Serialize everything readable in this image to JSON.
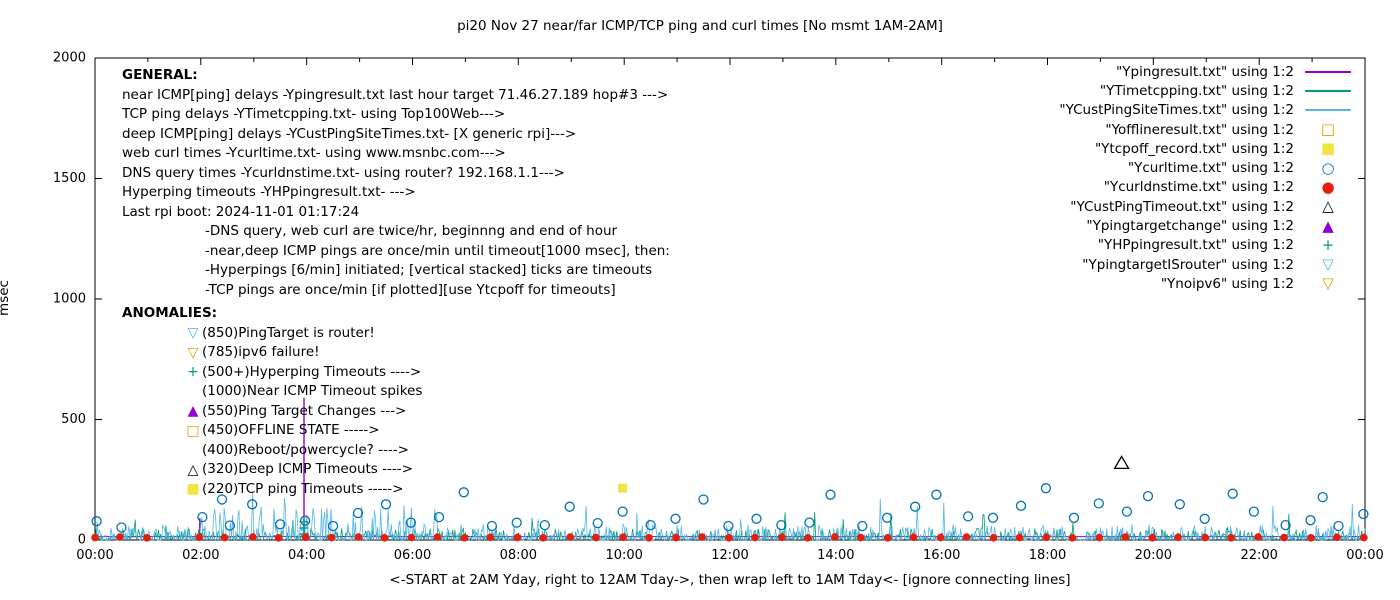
{
  "title": "pi20 Nov 27  near/far ICMP/TCP ping and curl times [No msmt 1AM-2AM]",
  "palette": {
    "purple": "#9400d3",
    "green": "#009e73",
    "lightblue": "#56b4e9",
    "orange": "#e69f00",
    "yellow": "#f0e442",
    "blue": "#0072b2",
    "red": "#e51e10",
    "black": "#000000"
  },
  "general": {
    "heading": "GENERAL:",
    "lines": [
      "near ICMP[ping] delays -Ypingresult.txt last hour target 71.46.27.189 hop#3 --->",
      "TCP ping delays -YTimetcpping.txt- using Top100Web--->",
      "deep ICMP[ping] delays -YCustPingSiteTimes.txt- [X generic rpi]--->",
      "web curl times -Ycurltime.txt- using www.msnbc.com--->",
      "DNS query times -Ycurldnstime.txt- using router? 192.168.1.1--->",
      "Hyperping timeouts -YHPpingresult.txt- --->",
      "Last rpi boot: 2024-11-01 01:17:24"
    ],
    "notes": [
      "-DNS query, web curl are twice/hr, beginnng and end of hour",
      "-near,deep ICMP pings are once/min until timeout[1000 msec], then:",
      "-Hyperpings [6/min] initiated; [vertical stacked] ticks are timeouts",
      "-TCP pings are once/min [if plotted][use Ytcpoff for timeouts]"
    ]
  },
  "anomalies": {
    "heading": "ANOMALIES:",
    "items": [
      {
        "glyph": "▽",
        "color": "#56b4e9",
        "text": "(850)PingTarget is router!"
      },
      {
        "glyph": "▽",
        "color": "#e69f00",
        "text": "(785)ipv6 failure!"
      },
      {
        "glyph": "+",
        "color": "#009e73",
        "text": "(500+)Hyperping Timeouts ---->"
      },
      {
        "glyph": "",
        "color": "",
        "text": "(1000)Near ICMP Timeout spikes"
      },
      {
        "glyph": "▲",
        "color": "#9400d3",
        "text": "(550)Ping Target Changes --->"
      },
      {
        "glyph": "□",
        "color": "#e69f00",
        "text": "(450)OFFLINE STATE ----->"
      },
      {
        "glyph": "",
        "color": "",
        "text": "(400)Reboot/powercycle? ---->"
      },
      {
        "glyph": "△",
        "color": "#000000",
        "text": "(320)Deep ICMP Timeouts ---->"
      },
      {
        "glyph": "■",
        "color": "#f0e442",
        "text": "(220)TCP ping Timeouts ----->"
      }
    ]
  },
  "legend": {
    "entries": [
      {
        "label": "\"Ypingresult.txt\" using 1:2",
        "marker": "line",
        "color": "#9400d3"
      },
      {
        "label": "\"YTimetcpping.txt\" using 1:2",
        "marker": "line",
        "color": "#009e73"
      },
      {
        "label": "\"YCustPingSiteTimes.txt\" using 1:2",
        "marker": "line",
        "color": "#56b4e9"
      },
      {
        "label": "\"Yofflineresult.txt\" using 1:2",
        "marker": "glyph",
        "glyph": "□",
        "color": "#e69f00"
      },
      {
        "label": "\"Ytcpoff_record.txt\" using 1:2",
        "marker": "glyph",
        "glyph": "■",
        "color": "#f0e442"
      },
      {
        "label": "\"Ycurltime.txt\" using 1:2",
        "marker": "glyph",
        "glyph": "○",
        "color": "#0072b2"
      },
      {
        "label": "\"Ycurldnstime.txt\" using 1:2",
        "marker": "glyph",
        "glyph": "●",
        "color": "#e51e10"
      },
      {
        "label": "\"YCustPingTimeout.txt\" using 1:2",
        "marker": "glyph",
        "glyph": "△",
        "color": "#000000"
      },
      {
        "label": "\"Ypingtargetchange\" using 1:2",
        "marker": "glyph",
        "glyph": "▲",
        "color": "#9400d3"
      },
      {
        "label": "\"YHPpingresult.txt\" using 1:2",
        "marker": "glyph",
        "glyph": "+",
        "color": "#009e73"
      },
      {
        "label": "\"YpingtargetISrouter\" using 1:2",
        "marker": "glyph",
        "glyph": "▽",
        "color": "#56b4e9"
      },
      {
        "label": "\"Ynoipv6\" using 1:2",
        "marker": "glyph",
        "glyph": "▽",
        "color": "#e69f00"
      }
    ]
  },
  "chart_data": {
    "type": "line",
    "title": "pi20 Nov 27  near/far ICMP/TCP ping and curl times [No msmt 1AM-2AM]",
    "xlabel": "<-START at 2AM Yday, right to 12AM Tday->, then wrap left to 1AM Tday<- [ignore connecting lines]",
    "ylabel": "msec",
    "xlim": [
      0,
      24
    ],
    "ylim": [
      0,
      2000
    ],
    "grid": false,
    "legend_position": "top-right-inside",
    "x_ticks": [
      {
        "h": 0,
        "label": "00:00"
      },
      {
        "h": 2,
        "label": "02:00"
      },
      {
        "h": 4,
        "label": "04:00"
      },
      {
        "h": 6,
        "label": "06:00"
      },
      {
        "h": 8,
        "label": "08:00"
      },
      {
        "h": 10,
        "label": "10:00"
      },
      {
        "h": 12,
        "label": "12:00"
      },
      {
        "h": 14,
        "label": "14:00"
      },
      {
        "h": 16,
        "label": "16:00"
      },
      {
        "h": 18,
        "label": "18:00"
      },
      {
        "h": 20,
        "label": "20:00"
      },
      {
        "h": 22,
        "label": "22:00"
      },
      {
        "h": 24,
        "label": "00:00"
      }
    ],
    "x_minor": [
      1,
      3,
      5,
      7,
      9,
      11,
      13,
      15,
      17,
      19,
      21,
      23
    ],
    "y_ticks": [
      {
        "v": 0,
        "label": "0"
      },
      {
        "v": 500,
        "label": "500"
      },
      {
        "v": 1000,
        "label": "1000"
      },
      {
        "v": 1500,
        "label": "1500"
      },
      {
        "v": 2000,
        "label": "2000"
      }
    ],
    "series": [
      {
        "name": "Ypingresult.txt near ICMP delays",
        "style": "baseline-spikes",
        "color": "#9400d3",
        "baseline": 14,
        "spikes": [
          [
            1.98,
            90
          ],
          [
            3.95,
            590
          ]
        ]
      },
      {
        "name": "YTimetcpping.txt TCP ping delays",
        "style": "noise-line",
        "color": "#009e73",
        "seed": 7,
        "amp": 48,
        "spike_prob": 0.01,
        "spike_max": 120
      },
      {
        "name": "YCustPingSiteTimes.txt deep ICMP delays",
        "style": "noise-line",
        "color": "#56b4e9",
        "seed": 13,
        "amp": 65,
        "high_region": [
          2,
          6.5
        ],
        "high_amp": 145,
        "spike_prob": 0.008,
        "spike_max": 200
      },
      {
        "name": "YHPpingresult.txt hyperping timeouts",
        "style": "plus",
        "color": "#009e73",
        "points": [
          [
            3.95,
            25
          ],
          [
            3.95,
            50
          ],
          [
            3.95,
            75
          ]
        ]
      },
      {
        "name": "Ytcpoff_record.txt TCP ping timeouts",
        "style": "filled-square",
        "color": "#f0e442",
        "points": [
          [
            9.97,
            215
          ]
        ]
      },
      {
        "name": "YCustPingTimeout.txt deep ICMP timeouts",
        "style": "open-triangle",
        "color": "#000000",
        "points": [
          [
            19.4,
            320
          ]
        ]
      },
      {
        "name": "Ycurltime.txt web curl times",
        "style": "open-circle",
        "color": "#0072b2",
        "points": [
          [
            0.03,
            78
          ],
          [
            0.5,
            52
          ],
          [
            2.03,
            95
          ],
          [
            2.4,
            168
          ],
          [
            2.55,
            60
          ],
          [
            2.97,
            148
          ],
          [
            3.5,
            65
          ],
          [
            3.97,
            80
          ],
          [
            4.5,
            58
          ],
          [
            4.97,
            112
          ],
          [
            5.5,
            148
          ],
          [
            5.97,
            72
          ],
          [
            6.5,
            95
          ],
          [
            6.97,
            198
          ],
          [
            7.5,
            58
          ],
          [
            7.97,
            72
          ],
          [
            8.5,
            62
          ],
          [
            8.97,
            138
          ],
          [
            9.5,
            70
          ],
          [
            9.97,
            118
          ],
          [
            10.5,
            62
          ],
          [
            10.97,
            88
          ],
          [
            11.5,
            168
          ],
          [
            11.97,
            58
          ],
          [
            12.5,
            88
          ],
          [
            12.97,
            62
          ],
          [
            13.5,
            72
          ],
          [
            13.9,
            188
          ],
          [
            14.5,
            58
          ],
          [
            14.97,
            92
          ],
          [
            15.5,
            138
          ],
          [
            15.9,
            188
          ],
          [
            16.5,
            98
          ],
          [
            16.97,
            92
          ],
          [
            17.5,
            142
          ],
          [
            17.97,
            215
          ],
          [
            18.5,
            92
          ],
          [
            18.97,
            152
          ],
          [
            19.5,
            118
          ],
          [
            19.9,
            182
          ],
          [
            20.5,
            148
          ],
          [
            20.97,
            88
          ],
          [
            21.5,
            192
          ],
          [
            21.9,
            118
          ],
          [
            22.5,
            62
          ],
          [
            22.97,
            82
          ],
          [
            23.2,
            178
          ],
          [
            23.5,
            58
          ],
          [
            23.97,
            108
          ]
        ]
      },
      {
        "name": "Ycurldnstime.txt DNS query times",
        "style": "filled-circle",
        "color": "#e51e10",
        "points": [
          [
            0.0,
            10
          ],
          [
            0.47,
            12
          ],
          [
            0.98,
            9
          ],
          [
            1.97,
            11
          ],
          [
            2.45,
            10
          ],
          [
            2.98,
            12
          ],
          [
            3.47,
            9
          ],
          [
            3.98,
            11
          ],
          [
            4.47,
            10
          ],
          [
            4.98,
            12
          ],
          [
            5.47,
            9
          ],
          [
            5.98,
            10
          ],
          [
            6.47,
            12
          ],
          [
            6.98,
            9
          ],
          [
            7.47,
            11
          ],
          [
            7.98,
            10
          ],
          [
            8.47,
            9
          ],
          [
            8.98,
            12
          ],
          [
            9.47,
            10
          ],
          [
            9.98,
            11
          ],
          [
            10.47,
            9
          ],
          [
            10.98,
            10
          ],
          [
            11.47,
            12
          ],
          [
            11.98,
            9
          ],
          [
            12.47,
            10
          ],
          [
            12.98,
            11
          ],
          [
            13.47,
            9
          ],
          [
            13.98,
            12
          ],
          [
            14.47,
            10
          ],
          [
            14.98,
            9
          ],
          [
            15.47,
            11
          ],
          [
            15.98,
            10
          ],
          [
            16.47,
            12
          ],
          [
            16.98,
            9
          ],
          [
            17.47,
            10
          ],
          [
            17.98,
            11
          ],
          [
            18.47,
            9
          ],
          [
            18.98,
            10
          ],
          [
            19.47,
            12
          ],
          [
            19.98,
            9
          ],
          [
            20.47,
            11
          ],
          [
            20.98,
            10
          ],
          [
            21.47,
            9
          ],
          [
            21.98,
            12
          ],
          [
            22.47,
            10
          ],
          [
            22.98,
            9
          ],
          [
            23.47,
            11
          ],
          [
            23.98,
            10
          ]
        ]
      }
    ]
  }
}
